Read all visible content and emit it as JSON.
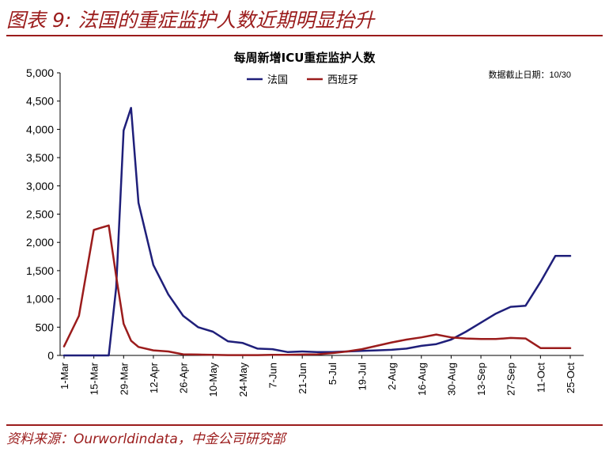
{
  "figure_title": "图表 9: 法国的重症监护人数近期明显抬升",
  "source": "资料来源：Ourworldindata，中金公司研究部",
  "chart_data": {
    "type": "line",
    "title": "每周新增ICU重症监护人数",
    "note": "数据截止日期：10/30",
    "xlabel": "",
    "ylabel": "",
    "ylim": [
      0,
      5000
    ],
    "yticks": [
      "0",
      "500",
      "1,000",
      "1,500",
      "2,000",
      "2,500",
      "3,000",
      "3,500",
      "4,000",
      "4,500",
      "5,000"
    ],
    "ytick_values": [
      0,
      500,
      1000,
      1500,
      2000,
      2500,
      3000,
      3500,
      4000,
      4500,
      5000
    ],
    "x_tick_labels": [
      "1-Mar",
      "15-Mar",
      "29-Mar",
      "12-Apr",
      "26-Apr",
      "10-May",
      "24-May",
      "7-Jun",
      "21-Jun",
      "5-Jul",
      "19-Jul",
      "2-Aug",
      "16-Aug",
      "30-Aug",
      "13-Sep",
      "27-Sep",
      "11-Oct",
      "25-Oct"
    ],
    "x_weeks": [
      0,
      1,
      2,
      2.5,
      3,
      3.5,
      4,
      4.5,
      5,
      6,
      7,
      8,
      9,
      10,
      11,
      12,
      13,
      14,
      15,
      16,
      17,
      18,
      19,
      20,
      21,
      22,
      23,
      24,
      25,
      26,
      27,
      28,
      29,
      30,
      31,
      32,
      33,
      34
    ],
    "grid": false,
    "legend_position": "top-left",
    "series": [
      {
        "name": "法国",
        "color": "#1F1F7A",
        "values": [
          0,
          0,
          0,
          0,
          0,
          1200,
          3980,
          4380,
          2700,
          1600,
          1080,
          700,
          500,
          420,
          250,
          220,
          120,
          110,
          60,
          70,
          60,
          60,
          70,
          80,
          90,
          100,
          120,
          170,
          200,
          280,
          420,
          580,
          740,
          860,
          880,
          1300,
          1760,
          1760
        ]
      },
      {
        "name": "西班牙",
        "color": "#9B1C1C",
        "values": [
          160,
          700,
          2220,
          2260,
          2300,
          1400,
          560,
          260,
          150,
          90,
          70,
          20,
          15,
          10,
          5,
          5,
          5,
          10,
          10,
          15,
          20,
          40,
          70,
          110,
          170,
          230,
          280,
          320,
          370,
          320,
          300,
          290,
          290,
          310,
          300,
          130,
          130,
          130
        ]
      }
    ]
  }
}
